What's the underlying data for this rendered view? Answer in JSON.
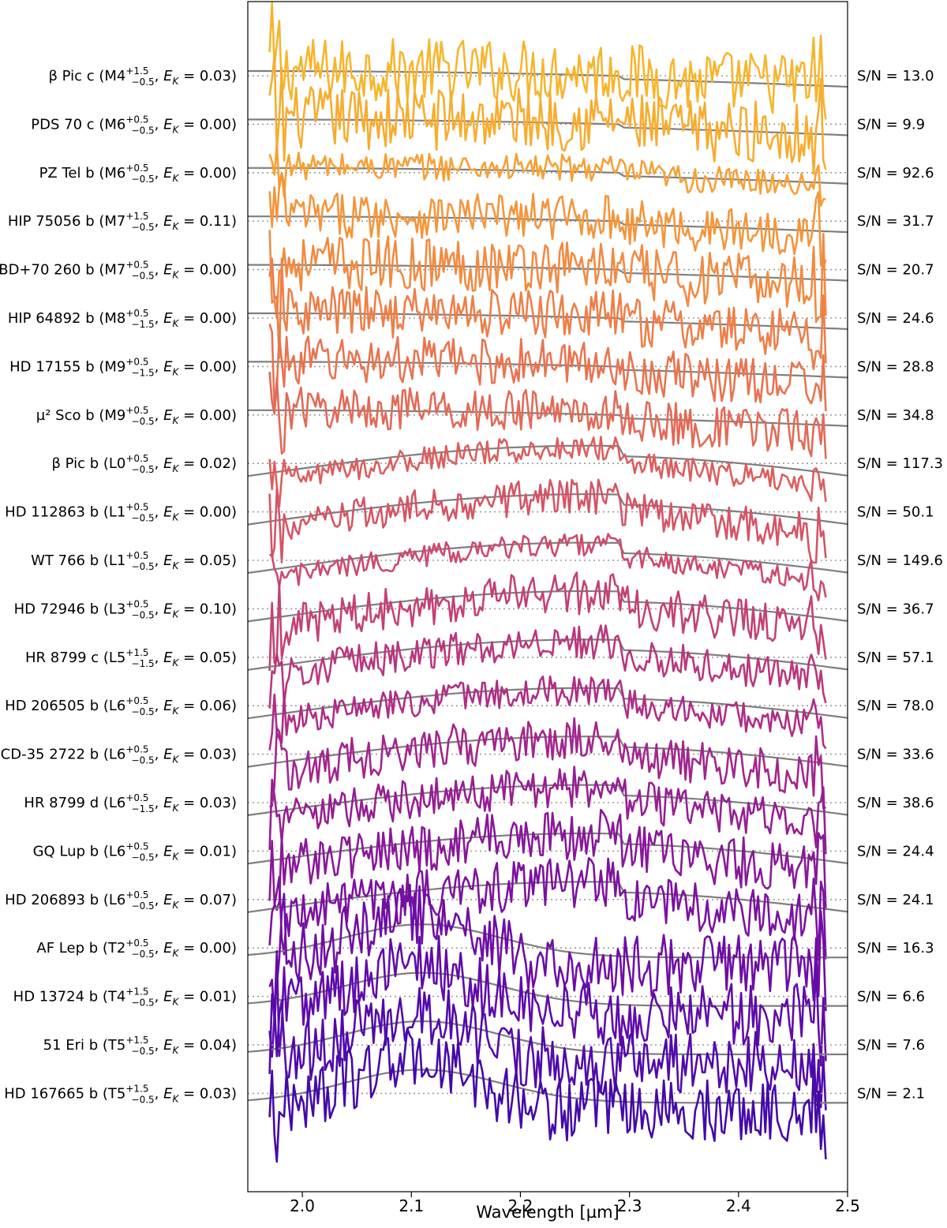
{
  "chart_data": {
    "type": "line",
    "xlabel": "Wavelength [µm]",
    "xlim": [
      1.95,
      2.5
    ],
    "x_ticks": [
      "2.0",
      "2.1",
      "2.2",
      "2.3",
      "2.4",
      "2.5"
    ],
    "x_tick_values": [
      2.0,
      2.1,
      2.2,
      2.3,
      2.4,
      2.5
    ],
    "grid": false,
    "reference_line": {
      "style": "dotted",
      "color": "#999999"
    },
    "model_color": "#7f7f7f",
    "objects": [
      {
        "name": "β Pic c",
        "spt": "M4",
        "up": "+1.5",
        "down": "−0.5",
        "ek": "0.03",
        "sn": "S/N = 13.0",
        "color": "#f7b52c",
        "kind": "early"
      },
      {
        "name": "PDS 70 c",
        "spt": "M6",
        "up": "+0.5",
        "down": "−0.5",
        "ek": "0.00",
        "sn": "S/N = 9.9",
        "color": "#f7ac2e",
        "kind": "early"
      },
      {
        "name": "PZ Tel b",
        "spt": "M6",
        "up": "+0.5",
        "down": "−0.5",
        "ek": "0.00",
        "sn": "S/N = 92.6",
        "color": "#f7a034",
        "kind": "early"
      },
      {
        "name": "HIP 75056 b",
        "spt": "M7",
        "up": "+1.5",
        "down": "−0.5",
        "ek": "0.11",
        "sn": "S/N = 31.7",
        "color": "#f4953a",
        "kind": "early"
      },
      {
        "name": "BD+70 260 b",
        "spt": "M7",
        "up": "+0.5",
        "down": "−0.5",
        "ek": "0.00",
        "sn": "S/N = 20.7",
        "color": "#f18a41",
        "kind": "early"
      },
      {
        "name": "HIP 64892 b",
        "spt": "M8",
        "up": "+0.5",
        "down": "−1.5",
        "ek": "0.00",
        "sn": "S/N = 24.6",
        "color": "#ed7f48",
        "kind": "early"
      },
      {
        "name": "HD 17155 b",
        "spt": "M9",
        "up": "+0.5",
        "down": "−1.5",
        "ek": "0.00",
        "sn": "S/N = 28.8",
        "color": "#e8744f",
        "kind": "early"
      },
      {
        "name": "µ² Sco b",
        "spt": "M9",
        "up": "+0.5",
        "down": "−0.5",
        "ek": "0.00",
        "sn": "S/N = 34.8",
        "color": "#e26a56",
        "kind": "early"
      },
      {
        "name": "β Pic b",
        "spt": "L0",
        "up": "+0.5",
        "down": "−0.5",
        "ek": "0.02",
        "sn": "S/N = 117.3",
        "color": "#db5f5e",
        "kind": "L"
      },
      {
        "name": "HD 112863 b",
        "spt": "L1",
        "up": "+0.5",
        "down": "−0.5",
        "ek": "0.00",
        "sn": "S/N = 50.1",
        "color": "#d45566",
        "kind": "L"
      },
      {
        "name": "WT 766 b",
        "spt": "L1",
        "up": "+0.5",
        "down": "−0.5",
        "ek": "0.05",
        "sn": "S/N = 149.6",
        "color": "#cc4b6d",
        "kind": "L"
      },
      {
        "name": "HD 72946 b",
        "spt": "L3",
        "up": "+0.5",
        "down": "−0.5",
        "ek": "0.10",
        "sn": "S/N = 36.7",
        "color": "#c34175",
        "kind": "L"
      },
      {
        "name": "HR 8799 c",
        "spt": "L5",
        "up": "+1.5",
        "down": "−1.5",
        "ek": "0.05",
        "sn": "S/N = 57.1",
        "color": "#b9377d",
        "kind": "L"
      },
      {
        "name": "HD 206505 b",
        "spt": "L6",
        "up": "+0.5",
        "down": "−0.5",
        "ek": "0.06",
        "sn": "S/N = 78.0",
        "color": "#ae2e85",
        "kind": "L"
      },
      {
        "name": "CD-35 2722 b",
        "spt": "L6",
        "up": "+0.5",
        "down": "−0.5",
        "ek": "0.03",
        "sn": "S/N = 33.6",
        "color": "#a2268c",
        "kind": "L"
      },
      {
        "name": "HR 8799 d",
        "spt": "L6",
        "up": "+0.5",
        "down": "−1.5",
        "ek": "0.03",
        "sn": "S/N = 38.6",
        "color": "#961f93",
        "kind": "L"
      },
      {
        "name": "GQ Lup b",
        "spt": "L6",
        "up": "+0.5",
        "down": "−0.5",
        "ek": "0.01",
        "sn": "S/N = 24.4",
        "color": "#89189a",
        "kind": "L"
      },
      {
        "name": "HD 206893 b",
        "spt": "L6",
        "up": "+0.5",
        "down": "−0.5",
        "ek": "0.07",
        "sn": "S/N = 24.1",
        "color": "#7c12a0",
        "kind": "L"
      },
      {
        "name": "AF Lep b",
        "spt": "T2",
        "up": "+0.5",
        "down": "−0.5",
        "ek": "0.00",
        "sn": "S/N = 16.3",
        "color": "#6e0ea5",
        "kind": "T"
      },
      {
        "name": "HD 13724 b",
        "spt": "T4",
        "up": "+1.5",
        "down": "−0.5",
        "ek": "0.01",
        "sn": "S/N = 6.6",
        "color": "#600ca9",
        "kind": "T"
      },
      {
        "name": "51 Eri b",
        "spt": "T5",
        "up": "+1.5",
        "down": "−0.5",
        "ek": "0.04",
        "sn": "S/N = 7.6",
        "color": "#520baa",
        "kind": "T"
      },
      {
        "name": "HD 167665 b",
        "spt": "T5",
        "up": "+1.5",
        "down": "−0.5",
        "ek": "0.03",
        "sn": "S/N = 2.1",
        "color": "#440aa8",
        "kind": "T"
      }
    ]
  }
}
